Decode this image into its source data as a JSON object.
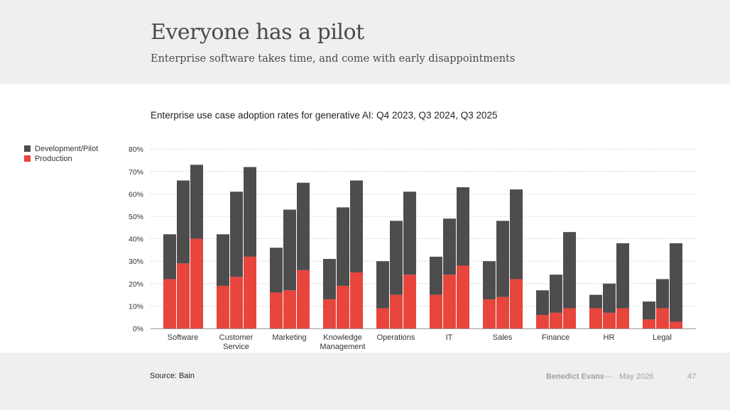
{
  "header": {
    "title": "Everyone has a pilot",
    "subtitle": "Enterprise software takes time, and come with early disappointments"
  },
  "colors": {
    "development_pilot": "#4d4d4d",
    "production": "#e8453c",
    "header_bg": "#efefef"
  },
  "chart_data": {
    "type": "bar",
    "stacked": true,
    "title": "Enterprise use case adoption rates for generative AI: Q4 2023, Q3 2024, Q3 2025",
    "categories": [
      "Software",
      "Customer Service",
      "Marketing",
      "Knowledge Management",
      "Operations",
      "IT",
      "Sales",
      "Finance",
      "HR",
      "Legal"
    ],
    "category_lines": [
      [
        "Software"
      ],
      [
        "Customer",
        "Service"
      ],
      [
        "Marketing"
      ],
      [
        "Knowledge",
        "Management"
      ],
      [
        "Operations"
      ],
      [
        "IT"
      ],
      [
        "Sales"
      ],
      [
        "Finance"
      ],
      [
        "HR"
      ],
      [
        "Legal"
      ]
    ],
    "periods": [
      "Q4 2023",
      "Q3 2024",
      "Q3 2025"
    ],
    "series": [
      {
        "name": "Production",
        "values": [
          [
            22,
            29,
            40
          ],
          [
            19,
            23,
            32
          ],
          [
            16,
            17,
            26
          ],
          [
            13,
            19,
            25
          ],
          [
            9,
            15,
            24
          ],
          [
            15,
            24,
            28
          ],
          [
            13,
            14,
            22
          ],
          [
            6,
            7,
            9
          ],
          [
            9,
            7,
            9
          ],
          [
            4,
            9,
            3
          ]
        ]
      },
      {
        "name": "Development/Pilot",
        "values": [
          [
            20,
            37,
            33
          ],
          [
            23,
            38,
            40
          ],
          [
            20,
            36,
            39
          ],
          [
            18,
            35,
            41
          ],
          [
            21,
            33,
            37
          ],
          [
            17,
            25,
            35
          ],
          [
            17,
            34,
            40
          ],
          [
            11,
            17,
            34
          ],
          [
            6,
            13,
            29
          ],
          [
            8,
            13,
            35
          ]
        ]
      }
    ],
    "ylim": [
      0,
      80
    ],
    "y_ticks": [
      0,
      10,
      20,
      30,
      40,
      50,
      60,
      70,
      80
    ],
    "y_tick_labels": [
      "0%",
      "10%",
      "20%",
      "30%",
      "40%",
      "50%",
      "60%",
      "70%",
      "80%"
    ],
    "grid": true,
    "legend": {
      "position": "left",
      "entries": [
        "Development/Pilot",
        "Production"
      ]
    }
  },
  "footer": {
    "source": "Source: Bain",
    "author": "Benedict Evans",
    "separator": "—",
    "date": "May 2026",
    "page": "47"
  }
}
